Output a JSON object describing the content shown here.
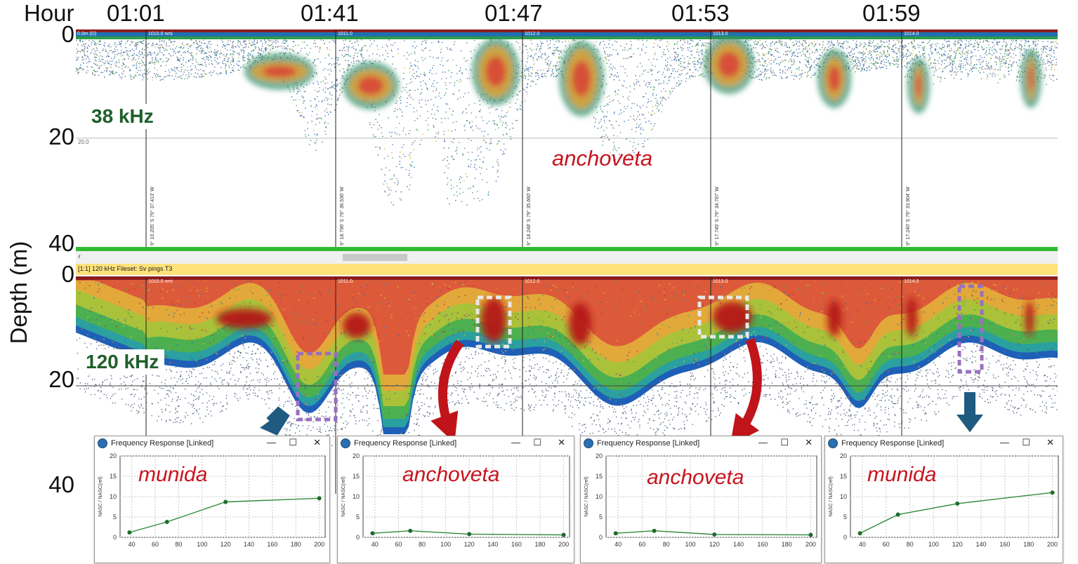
{
  "hours": [
    "Hour",
    "01:01",
    "01:41",
    "01:47",
    "01:53",
    "01:59"
  ],
  "depth_axis": {
    "title": "Depth (m)",
    "top_ticks": [
      "0",
      "20",
      "40"
    ],
    "bottom_ticks": [
      "0",
      "20",
      "40"
    ]
  },
  "panels": {
    "top": {
      "frequency": "38 kHz",
      "species": "anchoveta",
      "header_left": "0.0m (D)",
      "grid_label": "20.0"
    },
    "bottom": {
      "frequency": "120 kHz",
      "fileset": "[1:1] 120 kHz Fileset: Sv pings T3"
    },
    "scroll_arrow": "‹"
  },
  "section_labels": [
    "1010.0 nmi",
    "1011.0",
    "1012.0",
    "1013.0",
    "1014.0"
  ],
  "gps_labels": [
    "9° 10.205' S 79° 37.413' W",
    "9° 18.796' S 79° 36.536' W",
    "9° 18.248' S 79° 35.660' W",
    "9° 17.745' S 79° 34.787' W",
    "9° 17.240' S 79° 33.904' W"
  ],
  "colors": {
    "species_red": "#c8141e",
    "freq_green": "#1f5f2a",
    "arrow_red": "#c0141a",
    "arrow_blue": "#1f5a80",
    "box_purple": "#9a6fc0",
    "box_white": "#e8e8e8",
    "line_green": "#2e8b3a"
  },
  "windows": [
    {
      "title": "Frequency Response [Linked]",
      "species": "munida",
      "chart_data": {
        "type": "line",
        "x": [
          38,
          70,
          120,
          200
        ],
        "values": [
          1.2,
          3.8,
          8.7,
          9.6
        ],
        "ylabel": "NASC / NASC(ref)",
        "xlim": [
          30,
          205
        ],
        "ylim": [
          0,
          20
        ],
        "x_ticks": [
          "40",
          "60",
          "80",
          "100",
          "120",
          "140",
          "160",
          "180",
          "200"
        ],
        "y_ticks": [
          "0",
          "5",
          "10",
          "15",
          "20"
        ]
      }
    },
    {
      "title": "Frequency Response [Linked]",
      "species": "anchoveta",
      "chart_data": {
        "type": "line",
        "x": [
          38,
          70,
          120,
          200
        ],
        "values": [
          1.0,
          1.6,
          0.8,
          0.6
        ],
        "ylabel": "NASC / NASC(ref)",
        "xlim": [
          30,
          205
        ],
        "ylim": [
          0,
          20
        ],
        "x_ticks": [
          "40",
          "60",
          "80",
          "100",
          "120",
          "140",
          "160",
          "180",
          "200"
        ],
        "y_ticks": [
          "0",
          "5",
          "10",
          "15",
          "20"
        ]
      }
    },
    {
      "title": "Frequency Response [Linked]",
      "species": "anchoveta",
      "chart_data": {
        "type": "line",
        "x": [
          38,
          70,
          120,
          200
        ],
        "values": [
          1.0,
          1.6,
          0.7,
          0.6
        ],
        "ylabel": "NASC / NASC(ref)",
        "xlim": [
          30,
          205
        ],
        "ylim": [
          0,
          20
        ],
        "x_ticks": [
          "40",
          "60",
          "80",
          "100",
          "120",
          "140",
          "160",
          "180",
          "200"
        ],
        "y_ticks": [
          "0",
          "5",
          "10",
          "15",
          "20"
        ]
      }
    },
    {
      "title": "Frequency Response [Linked]",
      "species": "munida",
      "chart_data": {
        "type": "line",
        "x": [
          38,
          70,
          120,
          200
        ],
        "values": [
          1.0,
          5.6,
          8.3,
          11.0
        ],
        "ylabel": "NASC / NASC(ref)",
        "xlim": [
          30,
          205
        ],
        "ylim": [
          0,
          20
        ],
        "x_ticks": [
          "40",
          "60",
          "80",
          "100",
          "120",
          "140",
          "160",
          "180",
          "200"
        ],
        "y_ticks": [
          "0",
          "5",
          "10",
          "15",
          "20"
        ]
      }
    }
  ],
  "window_controls": {
    "minimize": "—",
    "maximize": "☐",
    "close": "✕"
  }
}
